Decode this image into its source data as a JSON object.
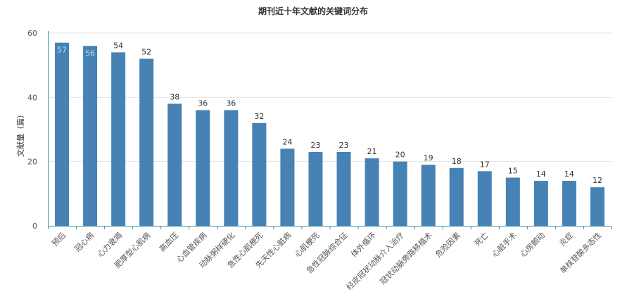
{
  "chart_data": {
    "type": "bar",
    "title": "期刊近十年文献的关键词分布",
    "ylabel": "文献量（篇）",
    "xlabel": "",
    "ylim": [
      0,
      60
    ],
    "yticks": [
      0,
      20,
      40,
      60
    ],
    "grid": true,
    "bar_color": "#4682b4",
    "categories": [
      "预后",
      "冠心病",
      "心力衰竭",
      "肥厚型心肌病",
      "高血压",
      "心血管疾病",
      "动脉粥样硬化",
      "急性心肌梗死",
      "先天性心脏病",
      "心肌梗死",
      "急性冠脉综合征",
      "体外循环",
      "经皮冠状动脉介入治疗",
      "冠状动脉旁路移植术",
      "危险因素",
      "死亡",
      "心脏手术",
      "心房颤动",
      "炎症",
      "单核苷酸多态性"
    ],
    "values": [
      57,
      56,
      54,
      52,
      38,
      36,
      36,
      32,
      24,
      23,
      23,
      21,
      20,
      19,
      18,
      17,
      15,
      14,
      14,
      12
    ]
  }
}
